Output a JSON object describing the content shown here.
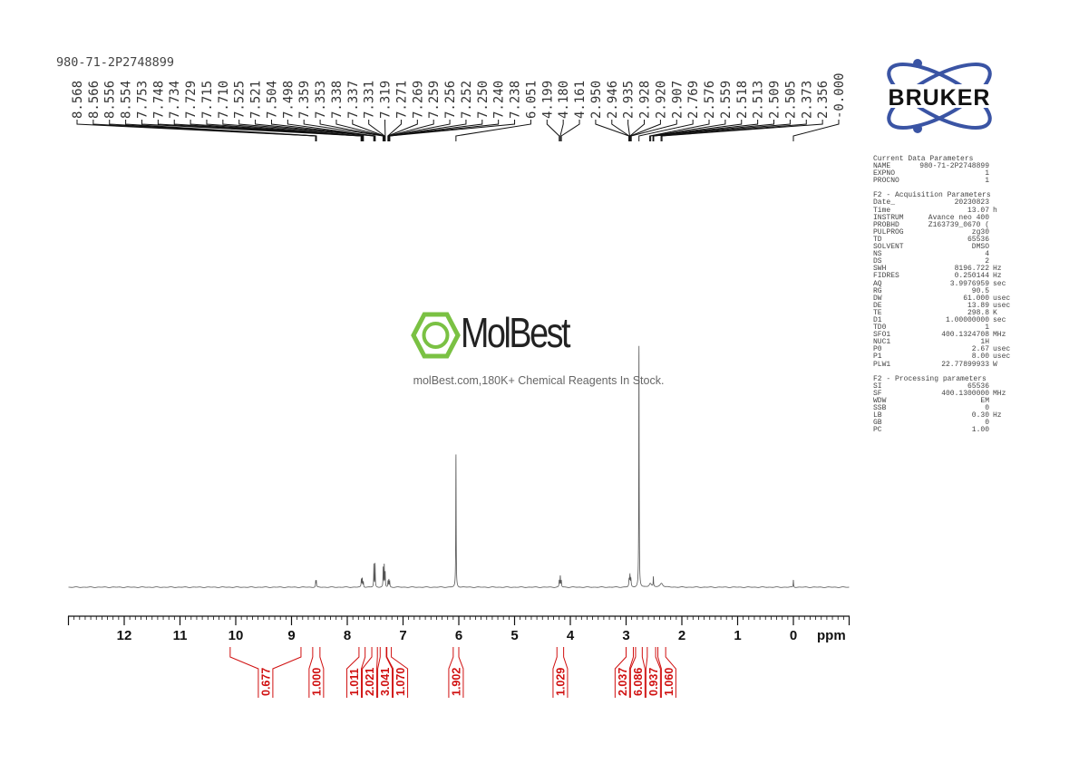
{
  "sample_name": "980-71-2P2748899",
  "watermark": {
    "brand": "MolBest",
    "tagline": "molBest.com,180K+ Chemical Reagents In Stock.",
    "color": "#7ac143"
  },
  "logo": {
    "text": "BRUKER",
    "orbit_color": "#3a54a4"
  },
  "params": [
    {
      "title": "Current Data Parameters",
      "rows": [
        {
          "name": "NAME",
          "value": "980-71-2P2748899",
          "unit": ""
        },
        {
          "name": "EXPNO",
          "value": "1",
          "unit": ""
        },
        {
          "name": "PROCNO",
          "value": "1",
          "unit": ""
        }
      ]
    },
    {
      "title": "F2 - Acquisition Parameters",
      "rows": [
        {
          "name": "Date_",
          "value": "20230823",
          "unit": ""
        },
        {
          "name": "Time",
          "value": "13.07",
          "unit": "h"
        },
        {
          "name": "INSTRUM",
          "value": "Avance neo 400",
          "unit": ""
        },
        {
          "name": "PROBHD",
          "value": "Z163739_0670 (",
          "unit": ""
        },
        {
          "name": "PULPROG",
          "value": "zg30",
          "unit": ""
        },
        {
          "name": "TD",
          "value": "65536",
          "unit": ""
        },
        {
          "name": "SOLVENT",
          "value": "DMSO",
          "unit": ""
        },
        {
          "name": "NS",
          "value": "4",
          "unit": ""
        },
        {
          "name": "DS",
          "value": "2",
          "unit": ""
        },
        {
          "name": "SWH",
          "value": "8196.722",
          "unit": "Hz"
        },
        {
          "name": "FIDRES",
          "value": "0.250144",
          "unit": "Hz"
        },
        {
          "name": "AQ",
          "value": "3.9976959",
          "unit": "sec"
        },
        {
          "name": "RG",
          "value": "90.5",
          "unit": ""
        },
        {
          "name": "DW",
          "value": "61.000",
          "unit": "usec"
        },
        {
          "name": "DE",
          "value": "13.89",
          "unit": "usec"
        },
        {
          "name": "TE",
          "value": "298.8",
          "unit": "K"
        },
        {
          "name": "D1",
          "value": "1.00000000",
          "unit": "sec"
        },
        {
          "name": "TD0",
          "value": "1",
          "unit": ""
        },
        {
          "name": "SFO1",
          "value": "400.1324708",
          "unit": "MHz"
        },
        {
          "name": "NUC1",
          "value": "1H",
          "unit": ""
        },
        {
          "name": "P0",
          "value": "2.67",
          "unit": "usec"
        },
        {
          "name": "P1",
          "value": "8.00",
          "unit": "usec"
        },
        {
          "name": "PLW1",
          "value": "22.77899933",
          "unit": "W"
        }
      ]
    },
    {
      "title": "F2 - Processing parameters",
      "rows": [
        {
          "name": "SI",
          "value": "65536",
          "unit": ""
        },
        {
          "name": "SF",
          "value": "400.1300000",
          "unit": "MHz"
        },
        {
          "name": "WDW",
          "value": "EM",
          "unit": ""
        },
        {
          "name": "SSB",
          "value": "0",
          "unit": ""
        },
        {
          "name": "LB",
          "value": "0.30",
          "unit": "Hz"
        },
        {
          "name": "GB",
          "value": "0",
          "unit": ""
        },
        {
          "name": "PC",
          "value": "1.00",
          "unit": ""
        }
      ]
    }
  ],
  "chart_data": {
    "type": "line",
    "xlabel": "ppm",
    "xlim": [
      13,
      -1
    ],
    "x_reversed": true,
    "x_ticks": [
      "12",
      "11",
      "10",
      "9",
      "8",
      "7",
      "6",
      "5",
      "4",
      "3",
      "2",
      "1",
      "0"
    ],
    "line_color": "#555555",
    "integral_color": "#d01010",
    "peaks": [
      {
        "ppm": 8.566,
        "intensity": 2.5,
        "width": 0.004
      },
      {
        "ppm": 8.555,
        "intensity": 2.5,
        "width": 0.004
      },
      {
        "ppm": 7.748,
        "intensity": 3.0,
        "width": 0.005
      },
      {
        "ppm": 7.731,
        "intensity": 3.5,
        "width": 0.005
      },
      {
        "ppm": 7.712,
        "intensity": 2.2,
        "width": 0.005
      },
      {
        "ppm": 7.523,
        "intensity": 9.5,
        "width": 0.004
      },
      {
        "ppm": 7.501,
        "intensity": 9.5,
        "width": 0.004
      },
      {
        "ppm": 7.356,
        "intensity": 8.0,
        "width": 0.004
      },
      {
        "ppm": 7.337,
        "intensity": 9.0,
        "width": 0.004
      },
      {
        "ppm": 7.32,
        "intensity": 6.0,
        "width": 0.004
      },
      {
        "ppm": 7.27,
        "intensity": 2.5,
        "width": 0.004
      },
      {
        "ppm": 7.254,
        "intensity": 3.0,
        "width": 0.004
      },
      {
        "ppm": 7.239,
        "intensity": 2.2,
        "width": 0.004
      },
      {
        "ppm": 6.051,
        "intensity": 55,
        "width": 0.004
      },
      {
        "ppm": 4.199,
        "intensity": 2.5,
        "width": 0.005
      },
      {
        "ppm": 4.18,
        "intensity": 4.5,
        "width": 0.005
      },
      {
        "ppm": 4.161,
        "intensity": 2.5,
        "width": 0.005
      },
      {
        "ppm": 2.946,
        "intensity": 3.0,
        "width": 0.006
      },
      {
        "ppm": 2.931,
        "intensity": 4.5,
        "width": 0.006
      },
      {
        "ppm": 2.914,
        "intensity": 3.0,
        "width": 0.006
      },
      {
        "ppm": 2.769,
        "intensity": 100,
        "width": 0.004
      },
      {
        "ppm": 2.567,
        "intensity": 1.6,
        "width": 0.025
      },
      {
        "ppm": 2.511,
        "intensity": 4.0,
        "width": 0.004
      },
      {
        "ppm": 2.365,
        "intensity": 1.6,
        "width": 0.03
      },
      {
        "ppm": 0.0,
        "intensity": 3.0,
        "width": 0.004
      }
    ],
    "peak_labels": [
      "8.568",
      "8.566",
      "8.556",
      "8.554",
      "7.753",
      "7.748",
      "7.734",
      "7.729",
      "7.715",
      "7.710",
      "7.525",
      "7.521",
      "7.504",
      "7.498",
      "7.359",
      "7.353",
      "7.338",
      "7.337",
      "7.331",
      "7.319",
      "7.271",
      "7.269",
      "7.259",
      "7.256",
      "7.252",
      "7.250",
      "7.240",
      "7.238",
      "6.051",
      "4.199",
      "4.180",
      "4.161",
      "2.950",
      "2.946",
      "2.935",
      "2.928",
      "2.920",
      "2.907",
      "2.769",
      "2.576",
      "2.559",
      "2.518",
      "2.513",
      "2.509",
      "2.505",
      "2.373",
      "2.356",
      "-0.000"
    ],
    "integrals": [
      {
        "value": "0.677",
        "from": 10.1,
        "to": 8.83
      },
      {
        "value": "1.000",
        "from": 8.62,
        "to": 8.49
      },
      {
        "value": "1.011",
        "from": 7.79,
        "to": 7.68
      },
      {
        "value": "2.021",
        "from": 7.56,
        "to": 7.46
      },
      {
        "value": "3.041",
        "from": 7.41,
        "to": 7.3
      },
      {
        "value": "1.070",
        "from": 7.29,
        "to": 7.21
      },
      {
        "value": "1.902",
        "from": 6.1,
        "to": 6.0
      },
      {
        "value": "1.029",
        "from": 4.24,
        "to": 4.12
      },
      {
        "value": "2.037",
        "from": 3.0,
        "to": 2.87
      },
      {
        "value": "6.086",
        "from": 2.83,
        "to": 2.71
      },
      {
        "value": "0.937",
        "from": 2.62,
        "to": 2.47
      },
      {
        "value": "1.060",
        "from": 2.43,
        "to": 2.29
      }
    ]
  }
}
